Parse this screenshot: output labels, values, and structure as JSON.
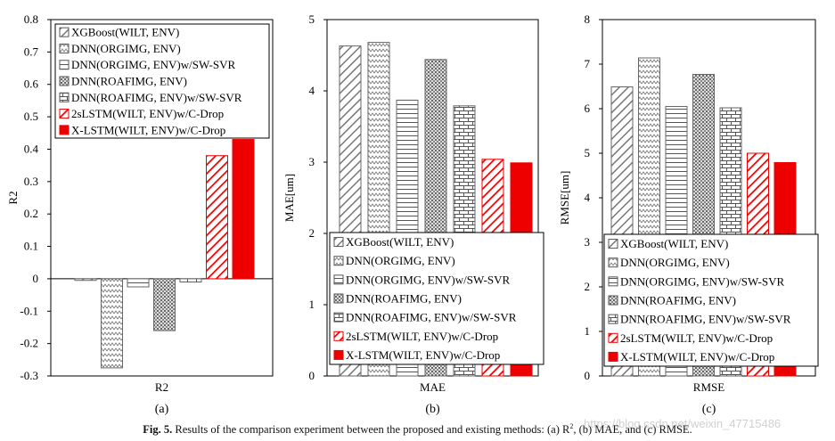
{
  "colors": {
    "red": "#ee0000",
    "gray": "#666666",
    "axis": "#000000"
  },
  "series": [
    {
      "name": "XGBoost(WILT, ENV)",
      "pattern": "diag"
    },
    {
      "name": "DNN(ORGIMG, ENV)",
      "pattern": "zigzag"
    },
    {
      "name": "DNN(ORGIMG, ENV)w/SW-SVR",
      "pattern": "hlines"
    },
    {
      "name": "DNN(ROAFIMG, ENV)",
      "pattern": "dots"
    },
    {
      "name": "DNN(ROAFIMG, ENV)w/SW-SVR",
      "pattern": "bricks"
    },
    {
      "name": "2sLSTM(WILT, ENV)w/C-Drop",
      "pattern": "reddiag"
    },
    {
      "name": "X-LSTM(WILT, ENV)w/C-Drop",
      "pattern": "red"
    }
  ],
  "chart_data": [
    {
      "type": "bar",
      "title": "",
      "ylabel": "R2",
      "xlabel": "R2",
      "panel_label": "(a)",
      "ylim": [
        -0.3,
        0.8
      ],
      "yticks": [
        -0.3,
        -0.2,
        -0.1,
        0,
        0.1,
        0.2,
        0.3,
        0.4,
        0.5,
        0.6,
        0.7,
        0.8
      ],
      "tick_labels": [
        "-0.3",
        "-0.2",
        "-0.1",
        "0",
        "0.1",
        "0.2",
        "0.3",
        "0.4",
        "0.5",
        "0.6",
        "0.7",
        "0.8"
      ],
      "values": [
        -0.005,
        -0.275,
        -0.025,
        -0.16,
        -0.01,
        0.38,
        0.43
      ],
      "legend_position": "top-left"
    },
    {
      "type": "bar",
      "title": "",
      "ylabel": "MAE[um]",
      "xlabel": "MAE",
      "panel_label": "(b)",
      "ylim": [
        0,
        5
      ],
      "yticks": [
        0,
        1,
        2,
        3,
        4,
        5
      ],
      "tick_labels": [
        "0",
        "1",
        "2",
        "3",
        "4",
        "5"
      ],
      "values": [
        4.63,
        4.68,
        3.87,
        4.44,
        3.79,
        3.04,
        2.99
      ],
      "legend_position": "bottom-right"
    },
    {
      "type": "bar",
      "title": "",
      "ylabel": "RMSE[um]",
      "xlabel": "RMSE",
      "panel_label": "(c)",
      "ylim": [
        0,
        8
      ],
      "yticks": [
        0,
        1,
        2,
        3,
        4,
        5,
        6,
        7,
        8
      ],
      "tick_labels": [
        "0",
        "1",
        "2",
        "3",
        "4",
        "5",
        "6",
        "7",
        "8"
      ],
      "values": [
        6.49,
        7.14,
        6.05,
        6.77,
        6.02,
        5.0,
        4.79
      ],
      "legend_position": "bottom-right"
    }
  ],
  "caption": {
    "label": "Fig. 5.",
    "text": "Results of the comparison experiment between the proposed and existing methods: (a) R",
    "sup": "2",
    "rest": ", (b) MAE, and (c) RMSE."
  },
  "watermark": "https://blog.csdn.net/weixin_47715486"
}
